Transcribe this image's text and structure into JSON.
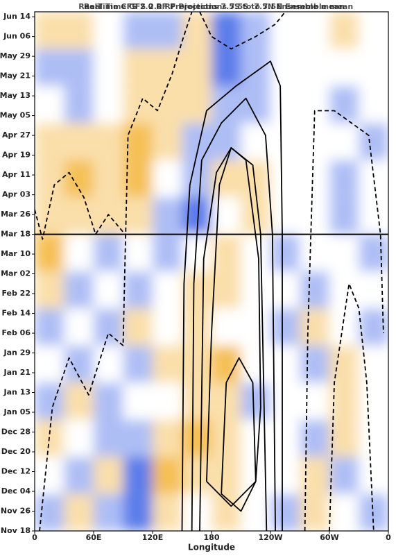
{
  "chart_data": {
    "type": "hovmoller",
    "titles": [
      "RealTime CFS 2.0 RF Projections 7.5S to 7.5N Ensemble mean",
      "Real Time GFS 2.0 RF Projections 7.5S to 7.5N Ensemble mean"
    ],
    "xlabel": "Longitude",
    "xlim": [
      0,
      360
    ],
    "xticks": [
      {
        "value": 0,
        "label": "0"
      },
      {
        "value": 60,
        "label": "60E"
      },
      {
        "value": 120,
        "label": "120E"
      },
      180,
      {
        "value": 240,
        "label": "120W"
      },
      {
        "value": 300,
        "label": "60W"
      },
      {
        "value": 360,
        "label": "0"
      }
    ],
    "ylim": [
      0,
      210
    ],
    "yticks": [
      {
        "value": 0,
        "label": "Nov 18"
      },
      {
        "value": 8,
        "label": "Nov 26"
      },
      {
        "value": 16,
        "label": "Dec 04"
      },
      {
        "value": 24,
        "label": "Dec 12"
      },
      {
        "value": 32,
        "label": "Dec 20"
      },
      {
        "value": 40,
        "label": "Dec 28"
      },
      {
        "value": 48,
        "label": "Jan 05"
      },
      {
        "value": 56,
        "label": "Jan 13"
      },
      {
        "value": 64,
        "label": "Jan 21"
      },
      {
        "value": 72,
        "label": "Jan 29"
      },
      {
        "value": 80,
        "label": "Feb 06"
      },
      {
        "value": 88,
        "label": "Feb 14"
      },
      {
        "value": 96,
        "label": "Feb 22"
      },
      {
        "value": 104,
        "label": "Mar 02"
      },
      {
        "value": 112,
        "label": "Mar 10"
      },
      {
        "value": 120,
        "label": "Mar 18"
      },
      {
        "value": 128,
        "label": "Mar 26"
      },
      {
        "value": 136,
        "label": "Apr 03"
      },
      {
        "value": 144,
        "label": "Apr 11"
      },
      {
        "value": 152,
        "label": "Apr 19"
      },
      {
        "value": 160,
        "label": "Apr 27"
      },
      {
        "value": 168,
        "label": "May 05"
      },
      {
        "value": 176,
        "label": "May 13"
      },
      {
        "value": 184,
        "label": "May 21"
      },
      {
        "value": 192,
        "label": "May 29"
      },
      {
        "value": 200,
        "label": "Jun 06"
      },
      {
        "value": 208,
        "label": "Jun 14"
      }
    ],
    "reference_line": 120,
    "field": {
      "lon_bins": [
        0,
        30,
        60,
        90,
        120,
        150,
        180,
        210,
        240,
        270,
        300,
        330,
        360
      ],
      "day_bins": [
        0,
        15,
        30,
        45,
        60,
        75,
        90,
        105,
        120,
        135,
        150,
        165,
        180,
        195,
        210
      ],
      "clim": [
        -3,
        3
      ],
      "positive_color": "#0a3ce0",
      "negative_color": "#f0a000",
      "values": [
        [
          1,
          -1,
          1,
          2,
          -1,
          0,
          -1,
          0,
          1,
          -1,
          0,
          1
        ],
        [
          0,
          1,
          -1,
          2,
          -2,
          -1,
          -1,
          0,
          0,
          -1,
          1,
          0
        ],
        [
          -1,
          0,
          1,
          1,
          -1,
          -2,
          -1,
          0,
          0,
          1,
          -1,
          0
        ],
        [
          1,
          -1,
          1,
          0,
          0,
          -1,
          -1,
          1,
          0,
          0,
          -1,
          0
        ],
        [
          0,
          1,
          0,
          1,
          -1,
          -1,
          -2,
          0,
          0,
          1,
          -1,
          0
        ],
        [
          1,
          0,
          1,
          -1,
          0,
          -1,
          0,
          0,
          1,
          -1,
          0,
          1
        ],
        [
          -1,
          1,
          0,
          1,
          0,
          -1,
          -1,
          0,
          0,
          1,
          0,
          0
        ],
        [
          -2,
          0,
          1,
          0,
          1,
          0,
          -1,
          0,
          1,
          0,
          0,
          1
        ],
        [
          -1,
          -1,
          -1,
          -1,
          1,
          2,
          0,
          -1,
          0,
          0,
          1,
          0
        ],
        [
          -1,
          -2,
          -1,
          -2,
          0,
          1,
          -1,
          -1,
          0,
          0,
          1,
          0
        ],
        [
          -1,
          -1,
          -1,
          -2,
          -1,
          1,
          1,
          0,
          0,
          0,
          0,
          1
        ],
        [
          0,
          1,
          0,
          -1,
          -1,
          -1,
          1,
          1,
          0,
          0,
          1,
          0
        ],
        [
          1,
          1,
          0,
          -1,
          -1,
          -1,
          2,
          1,
          0,
          0,
          0,
          0
        ],
        [
          -1,
          -1,
          0,
          1,
          1,
          -1,
          2,
          1,
          0,
          0,
          -1,
          0
        ]
      ]
    },
    "contours": [
      {
        "style": "solid",
        "x": [
          150,
          152,
          158,
          175,
          205,
          240,
          250,
          252,
          252
        ],
        "y": [
          0,
          100,
          140,
          170,
          180,
          190,
          180,
          120,
          0
        ]
      },
      {
        "style": "solid",
        "x": [
          160,
          162,
          170,
          190,
          215,
          235,
          242,
          245
        ],
        "y": [
          0,
          100,
          150,
          165,
          175,
          160,
          120,
          0
        ]
      },
      {
        "style": "solid",
        "x": [
          168,
          172,
          185,
          200,
          222,
          230,
          236
        ],
        "y": [
          0,
          110,
          145,
          155,
          148,
          120,
          0
        ]
      },
      {
        "style": "solid",
        "x": [
          175,
          180,
          188,
          200,
          215,
          228,
          230,
          225,
          200,
          175
        ],
        "y": [
          20,
          80,
          140,
          155,
          150,
          110,
          50,
          20,
          10,
          20
        ]
      },
      {
        "style": "solid",
        "x": [
          190,
          195,
          208,
          222,
          225,
          210,
          190
        ],
        "y": [
          15,
          60,
          70,
          60,
          20,
          8,
          15
        ]
      },
      {
        "style": "dashed",
        "x": [
          5,
          18,
          35,
          55,
          75,
          90,
          92,
          95,
          110,
          125,
          140,
          150,
          160
        ],
        "y": [
          0,
          50,
          70,
          55,
          80,
          75,
          110,
          160,
          175,
          170,
          185,
          198,
          210
        ]
      },
      {
        "style": "dashed",
        "x": [
          0,
          8,
          20,
          35,
          50,
          62,
          75,
          92
        ],
        "y": [
          130,
          118,
          140,
          145,
          135,
          120,
          128,
          120
        ]
      },
      {
        "style": "dashed",
        "x": [
          275,
          278,
          285,
          305,
          340,
          352,
          355
        ],
        "y": [
          0,
          80,
          170,
          170,
          160,
          120,
          80
        ]
      },
      {
        "style": "dashed",
        "x": [
          300,
          305,
          320,
          330,
          338,
          345
        ],
        "y": [
          0,
          60,
          100,
          90,
          60,
          0
        ]
      },
      {
        "style": "dashed",
        "x": [
          168,
          180,
          200,
          225,
          245,
          255
        ],
        "y": [
          210,
          200,
          195,
          200,
          205,
          210
        ]
      }
    ]
  }
}
